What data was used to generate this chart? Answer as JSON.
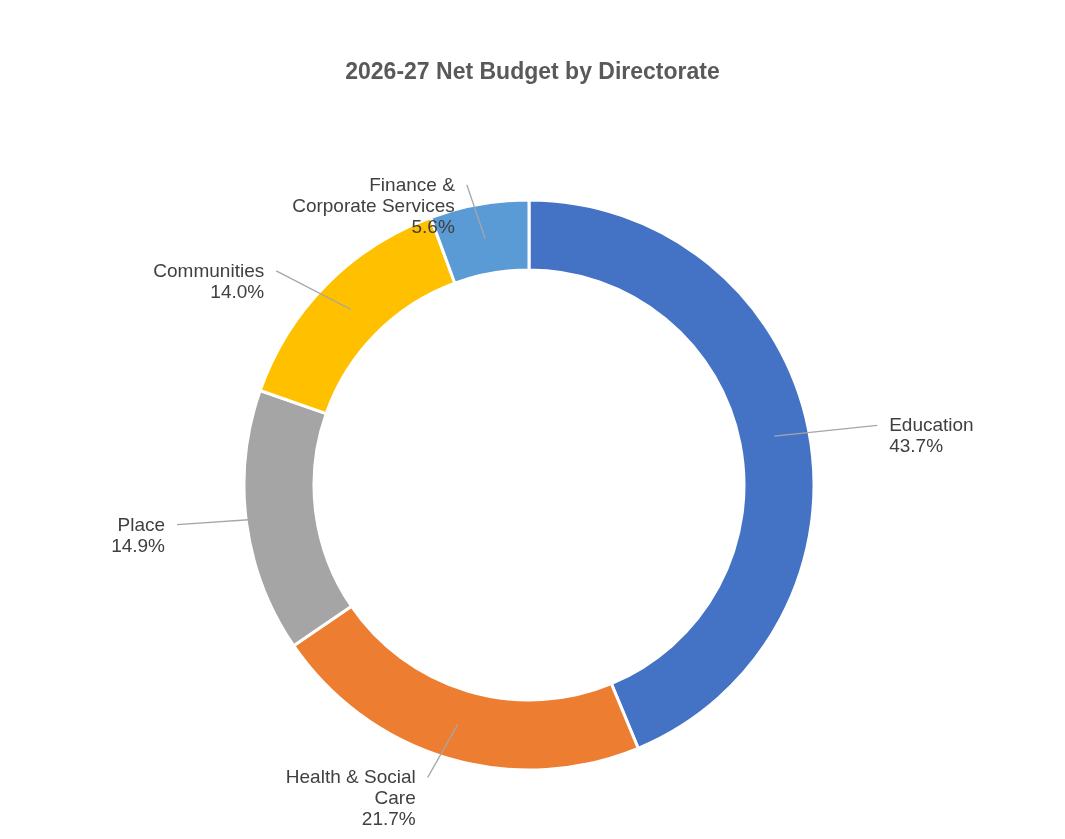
{
  "chart_data": {
    "type": "donut",
    "title": "2026-27 Net Budget by Directorate",
    "categories": [
      "Education",
      "Health & Social Care",
      "Place",
      "Communities",
      "Finance & Corporate Services"
    ],
    "values": [
      43.7,
      21.7,
      14.9,
      14.0,
      5.6
    ],
    "value_labels": [
      "43.7%",
      "21.7%",
      "14.9%",
      "14.0%",
      "5.6%"
    ],
    "colors": [
      "#4472c4",
      "#ed7d31",
      "#a5a5a5",
      "#ffc000",
      "#5b9bd5"
    ]
  }
}
